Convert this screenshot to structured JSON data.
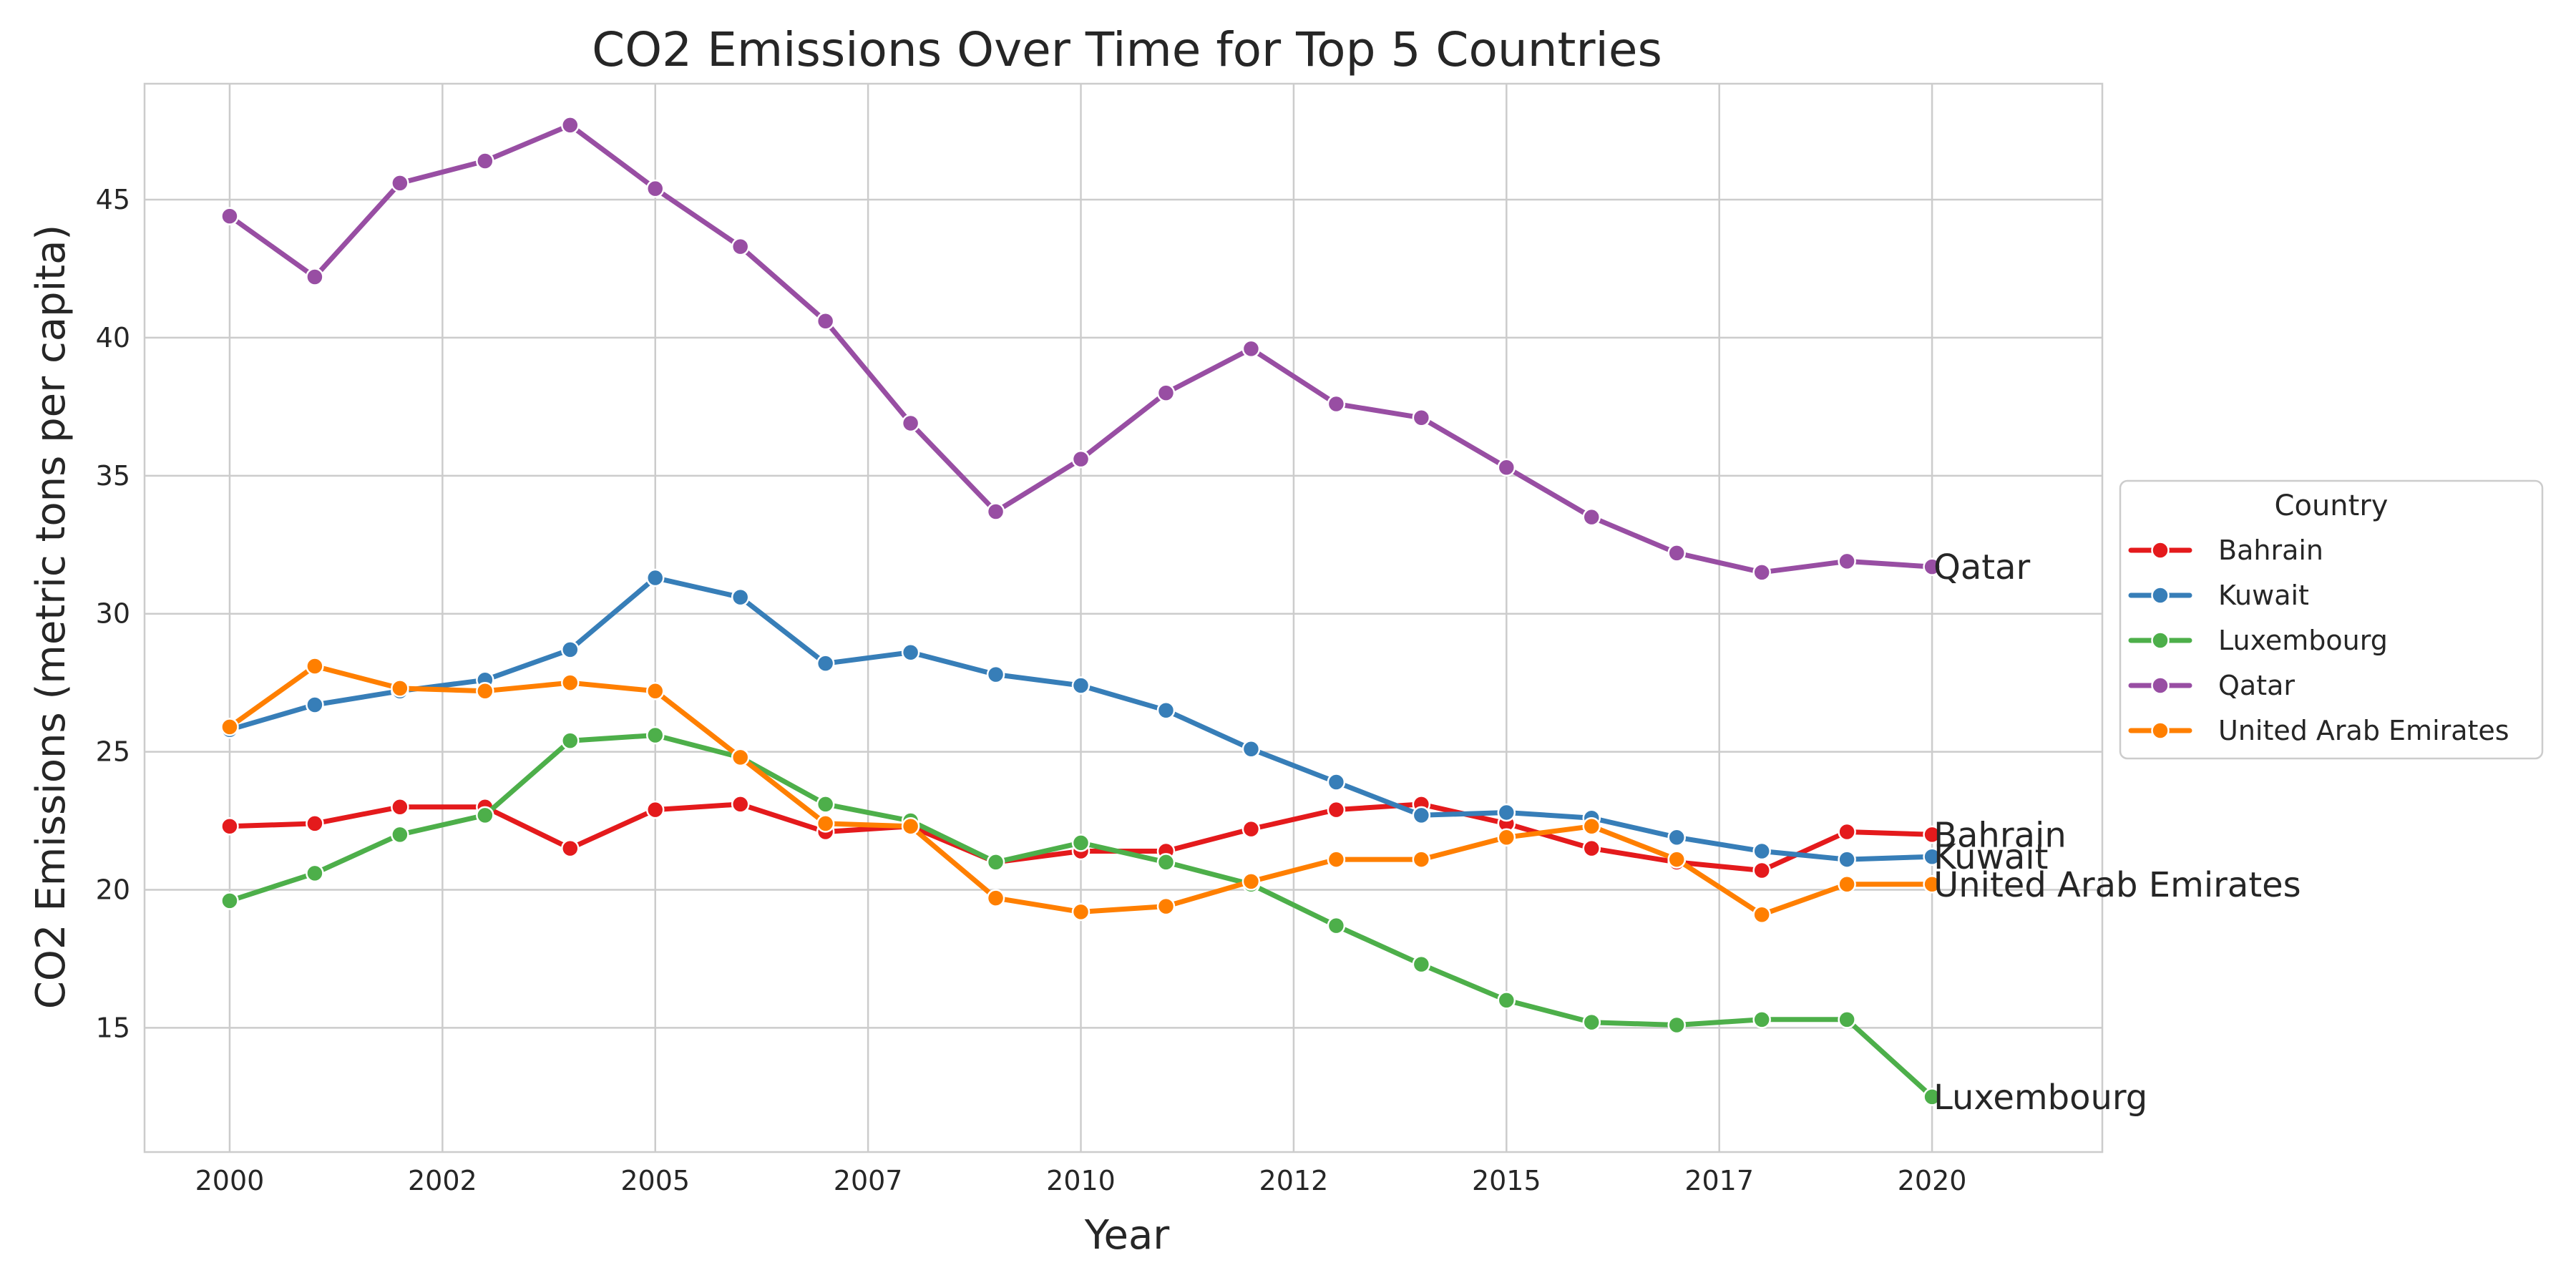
{
  "chart_data": {
    "type": "line",
    "title": "CO2 Emissions Over Time for Top 5 Countries",
    "xlabel": "Year",
    "ylabel": "CO2 Emissions (metric tons per capita)",
    "xlim": [
      1999.0,
      2022.0
    ],
    "ylim": [
      10.5,
      49.2
    ],
    "x_ticks": [
      2000,
      2002.5,
      2005,
      2007.5,
      2010,
      2012.5,
      2015,
      2017.5,
      2020
    ],
    "x_tick_labels": [
      "2000",
      "2002",
      "2005",
      "2007",
      "2010",
      "2012",
      "2015",
      "2017",
      "2020"
    ],
    "y_ticks": [
      15,
      20,
      25,
      30,
      35,
      40,
      45
    ],
    "grid": true,
    "legend": {
      "title": "Country",
      "placement": "center-right, outside plot"
    },
    "x": [
      2000,
      2001,
      2002,
      2003,
      2004,
      2005,
      2006,
      2007,
      2008,
      2009,
      2010,
      2011,
      2012,
      2013,
      2014,
      2015,
      2016,
      2017,
      2018,
      2019,
      2020
    ],
    "series": [
      {
        "name": "Bahrain",
        "color": "#e41a1c",
        "values": [
          22.3,
          22.4,
          23.0,
          23.0,
          21.5,
          22.9,
          23.1,
          22.1,
          22.3,
          21.0,
          21.4,
          21.4,
          22.2,
          22.9,
          23.1,
          22.4,
          21.5,
          21.0,
          20.7,
          22.1,
          22.0
        ]
      },
      {
        "name": "Kuwait",
        "color": "#377eb8",
        "values": [
          25.8,
          26.7,
          27.2,
          27.6,
          28.7,
          31.3,
          30.6,
          28.2,
          28.6,
          27.8,
          27.4,
          26.5,
          25.1,
          23.9,
          22.7,
          22.8,
          22.6,
          21.9,
          21.4,
          21.1,
          21.2
        ]
      },
      {
        "name": "Luxembourg",
        "color": "#4daf4a",
        "values": [
          19.6,
          20.6,
          22.0,
          22.7,
          25.4,
          25.6,
          24.8,
          23.1,
          22.5,
          21.0,
          21.7,
          21.0,
          20.2,
          18.7,
          17.3,
          16.0,
          15.2,
          15.1,
          15.3,
          15.3,
          12.5
        ]
      },
      {
        "name": "Qatar",
        "color": "#984ea3",
        "values": [
          44.4,
          42.2,
          45.6,
          46.4,
          47.7,
          45.4,
          43.3,
          40.6,
          36.9,
          33.7,
          35.6,
          38.0,
          39.6,
          37.6,
          37.1,
          35.3,
          33.5,
          32.2,
          31.5,
          31.9,
          31.7
        ]
      },
      {
        "name": "United Arab Emirates",
        "color": "#ff7f00",
        "values": [
          25.9,
          28.1,
          27.3,
          27.2,
          27.5,
          27.2,
          24.8,
          22.4,
          22.3,
          19.7,
          19.2,
          19.4,
          20.3,
          21.1,
          21.1,
          21.9,
          22.3,
          21.1,
          19.1,
          20.2,
          20.2
        ]
      }
    ],
    "end_labels": [
      "Bahrain",
      "Kuwait",
      "United Arab Emirates",
      "Qatar",
      "Luxembourg"
    ]
  }
}
